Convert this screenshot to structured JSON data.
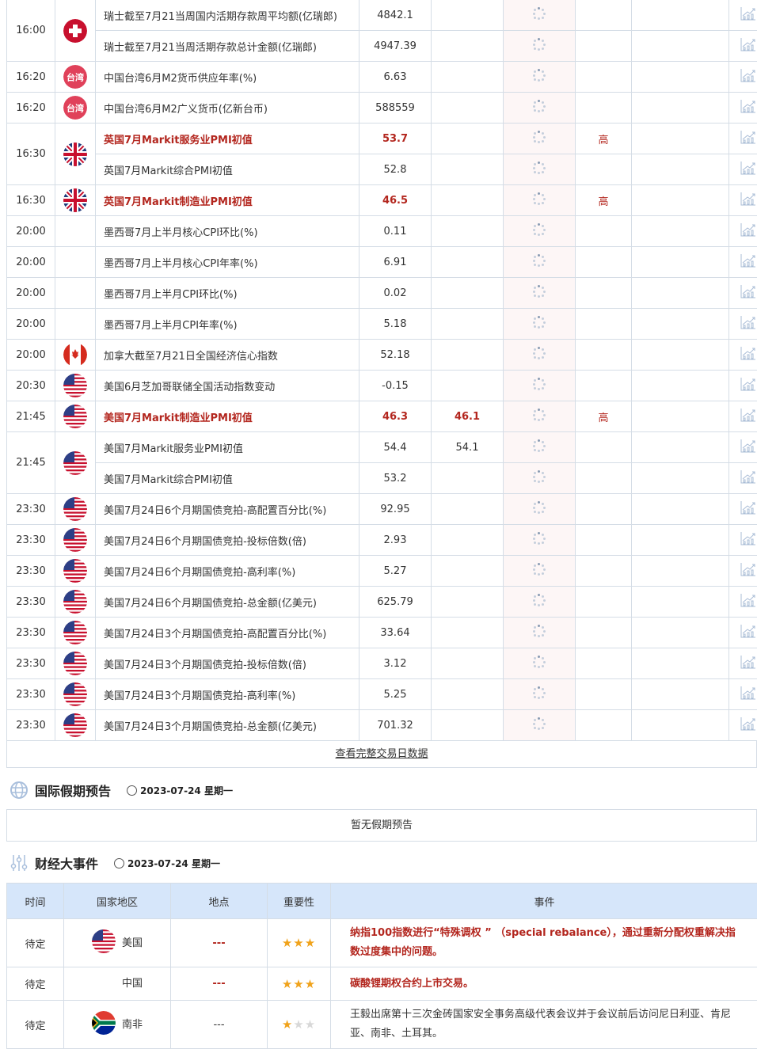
{
  "calendar": [
    {
      "time": "16:00",
      "flag": "switzerland",
      "items": [
        {
          "name": "瑞士截至7月21当周国内活期存款周平均额(亿瑞郎)",
          "actual": "4842.1",
          "forecast": "",
          "importance": "",
          "hi": false
        },
        {
          "name": "瑞士截至7月21当周活期存款总计金额(亿瑞郎)",
          "actual": "4947.39",
          "forecast": "",
          "importance": "",
          "hi": false
        }
      ]
    },
    {
      "time": "16:20",
      "flag": "taiwan",
      "flag_text": "台湾",
      "items": [
        {
          "name": "中国台湾6月M2货币供应年率(%)",
          "actual": "6.63",
          "forecast": "",
          "importance": "",
          "hi": false
        }
      ]
    },
    {
      "time": "16:20",
      "flag": "taiwan",
      "flag_text": "台湾",
      "items": [
        {
          "name": "中国台湾6月M2广义货币(亿新台币)",
          "actual": "588559",
          "forecast": "",
          "importance": "",
          "hi": false
        }
      ]
    },
    {
      "time": "16:30",
      "flag": "uk",
      "items": [
        {
          "name": "英国7月Markit服务业PMI初值",
          "actual": "53.7",
          "forecast": "",
          "importance": "高",
          "hi": true
        },
        {
          "name": "英国7月Markit综合PMI初值",
          "actual": "52.8",
          "forecast": "",
          "importance": "",
          "hi": false
        }
      ]
    },
    {
      "time": "16:30",
      "flag": "uk",
      "items": [
        {
          "name": "英国7月Markit制造业PMI初值",
          "actual": "46.5",
          "forecast": "",
          "importance": "高",
          "hi": true
        }
      ]
    },
    {
      "time": "20:00",
      "flag": "",
      "items": [
        {
          "name": "墨西哥7月上半月核心CPI环比(%)",
          "actual": "0.11",
          "forecast": "",
          "importance": "",
          "hi": false
        }
      ]
    },
    {
      "time": "20:00",
      "flag": "",
      "items": [
        {
          "name": "墨西哥7月上半月核心CPI年率(%)",
          "actual": "6.91",
          "forecast": "",
          "importance": "",
          "hi": false
        }
      ]
    },
    {
      "time": "20:00",
      "flag": "",
      "items": [
        {
          "name": "墨西哥7月上半月CPI环比(%)",
          "actual": "0.02",
          "forecast": "",
          "importance": "",
          "hi": false
        }
      ]
    },
    {
      "time": "20:00",
      "flag": "",
      "items": [
        {
          "name": "墨西哥7月上半月CPI年率(%)",
          "actual": "5.18",
          "forecast": "",
          "importance": "",
          "hi": false
        }
      ]
    },
    {
      "time": "20:00",
      "flag": "canada",
      "items": [
        {
          "name": "加拿大截至7月21日全国经济信心指数",
          "actual": "52.18",
          "forecast": "",
          "importance": "",
          "hi": false
        }
      ]
    },
    {
      "time": "20:30",
      "flag": "us",
      "items": [
        {
          "name": "美国6月芝加哥联储全国活动指数变动",
          "actual": "-0.15",
          "forecast": "",
          "importance": "",
          "hi": false
        }
      ]
    },
    {
      "time": "21:45",
      "flag": "us",
      "items": [
        {
          "name": "美国7月Markit制造业PMI初值",
          "actual": "46.3",
          "forecast": "46.1",
          "importance": "高",
          "hi": true
        }
      ]
    },
    {
      "time": "21:45",
      "flag": "us",
      "items": [
        {
          "name": "美国7月Markit服务业PMI初值",
          "actual": "54.4",
          "forecast": "54.1",
          "importance": "",
          "hi": false
        },
        {
          "name": "美国7月Markit综合PMI初值",
          "actual": "53.2",
          "forecast": "",
          "importance": "",
          "hi": false
        }
      ]
    },
    {
      "time": "23:30",
      "flag": "us",
      "items": [
        {
          "name": "美国7月24日6个月期国债竞拍-高配置百分比(%)",
          "actual": "92.95",
          "forecast": "",
          "importance": "",
          "hi": false
        }
      ]
    },
    {
      "time": "23:30",
      "flag": "us",
      "items": [
        {
          "name": "美国7月24日6个月期国债竞拍-投标倍数(倍)",
          "actual": "2.93",
          "forecast": "",
          "importance": "",
          "hi": false
        }
      ]
    },
    {
      "time": "23:30",
      "flag": "us",
      "items": [
        {
          "name": "美国7月24日6个月期国债竞拍-高利率(%)",
          "actual": "5.27",
          "forecast": "",
          "importance": "",
          "hi": false
        }
      ]
    },
    {
      "time": "23:30",
      "flag": "us",
      "items": [
        {
          "name": "美国7月24日6个月期国债竞拍-总金额(亿美元)",
          "actual": "625.79",
          "forecast": "",
          "importance": "",
          "hi": false
        }
      ]
    },
    {
      "time": "23:30",
      "flag": "us",
      "items": [
        {
          "name": "美国7月24日3个月期国债竞拍-高配置百分比(%)",
          "actual": "33.64",
          "forecast": "",
          "importance": "",
          "hi": false
        }
      ]
    },
    {
      "time": "23:30",
      "flag": "us",
      "items": [
        {
          "name": "美国7月24日3个月期国债竞拍-投标倍数(倍)",
          "actual": "3.12",
          "forecast": "",
          "importance": "",
          "hi": false
        }
      ]
    },
    {
      "time": "23:30",
      "flag": "us",
      "items": [
        {
          "name": "美国7月24日3个月期国债竞拍-高利率(%)",
          "actual": "5.25",
          "forecast": "",
          "importance": "",
          "hi": false
        }
      ]
    },
    {
      "time": "23:30",
      "flag": "us",
      "items": [
        {
          "name": "美国7月24日3个月期国债竞拍-总金额(亿美元)",
          "actual": "701.32",
          "forecast": "",
          "importance": "",
          "hi": false
        }
      ]
    }
  ],
  "more_link": "查看完整交易日数据",
  "holidays": {
    "title": "国际假期预告",
    "date": "2023-07-24 星期一",
    "empty": "暂无假期预告"
  },
  "events": {
    "title": "财经大事件",
    "date": "2023-07-24 星期一",
    "headers": [
      "时间",
      "国家地区",
      "地点",
      "重要性",
      "事件"
    ],
    "rows": [
      {
        "time": "待定",
        "flag": "us",
        "country": "美国",
        "place": "---",
        "stars": 3,
        "event": "纳指100指数进行“特殊调权 ” （special rebalance），通过重新分配权重解决指数过度集中的问题。",
        "hi": true
      },
      {
        "time": "待定",
        "flag": "",
        "country": "中国",
        "place": "---",
        "stars": 3,
        "event": "碳酸锂期权合约上市交易。",
        "hi": true
      },
      {
        "time": "待定",
        "flag": "south-africa",
        "country": "南非",
        "place": "---",
        "stars": 1,
        "event": "王毅出席第十三次金砖国家安全事务高级代表会议并于会议前后访问尼日利亚、肯尼亚、南非、土耳其。",
        "hi": false
      }
    ]
  },
  "colors": {
    "highlight": "#b3261e",
    "header_bg": "#d6e6fa",
    "border": "#d5dde6"
  }
}
